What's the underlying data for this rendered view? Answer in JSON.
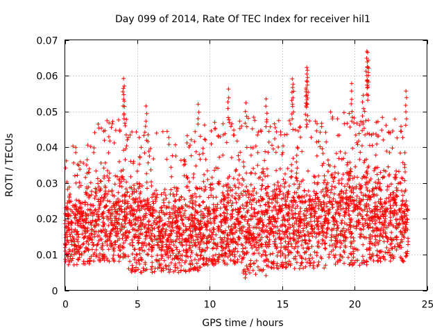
{
  "chart_data": {
    "type": "scatter",
    "title": "Day 099 of 2014, Rate Of TEC Index for receiver hil1",
    "xlabel": "GPS time / hours",
    "ylabel": "ROTI / TECUs",
    "xlim": [
      0,
      25
    ],
    "ylim": [
      0,
      0.07
    ],
    "x_ticks": [
      "0",
      "5",
      "10",
      "15",
      "20",
      "25"
    ],
    "y_ticks": [
      "0",
      "0.01",
      "0.02",
      "0.03",
      "0.04",
      "0.05",
      "0.06",
      "0.07"
    ],
    "grid": true,
    "marker": "+",
    "color": "#ff0000",
    "series": [
      {
        "name": "ROTI",
        "x_range": [
          0,
          23.7
        ],
        "bands": [
          {
            "x": [
              0.0,
              2.0
            ],
            "center": 0.018,
            "lo": 0.007,
            "hi": 0.039
          },
          {
            "x": [
              2.0,
              4.3
            ],
            "center": 0.021,
            "lo": 0.008,
            "hi": 0.046
          },
          {
            "x": [
              4.3,
              6.0
            ],
            "center": 0.018,
            "lo": 0.005,
            "hi": 0.042
          },
          {
            "x": [
              6.0,
              9.5
            ],
            "center": 0.017,
            "lo": 0.005,
            "hi": 0.042
          },
          {
            "x": [
              9.5,
              12.3
            ],
            "center": 0.018,
            "lo": 0.007,
            "hi": 0.045
          },
          {
            "x": [
              12.3,
              14.0
            ],
            "center": 0.019,
            "lo": 0.004,
            "hi": 0.046
          },
          {
            "x": [
              14.0,
              18.0
            ],
            "center": 0.019,
            "lo": 0.006,
            "hi": 0.045
          },
          {
            "x": [
              18.0,
              21.5
            ],
            "center": 0.022,
            "lo": 0.007,
            "hi": 0.048
          },
          {
            "x": [
              21.5,
              23.7
            ],
            "center": 0.02,
            "lo": 0.008,
            "hi": 0.046
          }
        ],
        "peaks": [
          {
            "x": 4.05,
            "y": 0.0592
          },
          {
            "x": 4.1,
            "y": 0.0571
          },
          {
            "x": 5.6,
            "y": 0.0515
          },
          {
            "x": 9.2,
            "y": 0.052
          },
          {
            "x": 11.3,
            "y": 0.0563
          },
          {
            "x": 12.5,
            "y": 0.0524
          },
          {
            "x": 13.9,
            "y": 0.0535
          },
          {
            "x": 15.7,
            "y": 0.0591
          },
          {
            "x": 15.75,
            "y": 0.0576
          },
          {
            "x": 16.7,
            "y": 0.0623
          },
          {
            "x": 16.75,
            "y": 0.0615
          },
          {
            "x": 16.7,
            "y": 0.0585
          },
          {
            "x": 16.65,
            "y": 0.0555
          },
          {
            "x": 19.8,
            "y": 0.0578
          },
          {
            "x": 20.85,
            "y": 0.0668
          },
          {
            "x": 20.9,
            "y": 0.0665
          },
          {
            "x": 20.95,
            "y": 0.0643
          },
          {
            "x": 20.9,
            "y": 0.0625
          },
          {
            "x": 20.6,
            "y": 0.0545
          },
          {
            "x": 23.55,
            "y": 0.0557
          },
          {
            "x": 12.45,
            "y": 0.0035
          },
          {
            "x": 12.5,
            "y": 0.0045
          }
        ]
      }
    ]
  }
}
